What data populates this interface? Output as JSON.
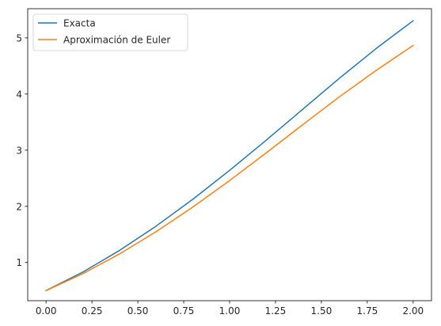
{
  "chart_data": {
    "type": "line",
    "title": "",
    "xlabel": "",
    "ylabel": "",
    "xlim": [
      -0.1,
      2.1
    ],
    "ylim": [
      0.32,
      5.52
    ],
    "grid": false,
    "legend_position": "top-left",
    "xticks": [
      "0.00",
      "0.25",
      "0.50",
      "0.75",
      "1.00",
      "1.25",
      "1.50",
      "1.75",
      "2.00"
    ],
    "xtick_values": [
      0,
      0.25,
      0.5,
      0.75,
      1.0,
      1.25,
      1.5,
      1.75,
      2.0
    ],
    "yticks": [
      "1",
      "2",
      "3",
      "4",
      "5"
    ],
    "ytick_values": [
      1,
      2,
      3,
      4,
      5
    ],
    "series": [
      {
        "name": "Exacta",
        "color": "#1f77b4",
        "x": [
          0,
          0.2,
          0.4,
          0.6,
          0.8,
          1.0,
          1.2,
          1.4,
          1.6,
          1.8,
          2.0
        ],
        "y": [
          0.5,
          0.829,
          1.214,
          1.649,
          2.127,
          2.641,
          3.18,
          3.733,
          4.286,
          4.815,
          5.305
        ]
      },
      {
        "name": "Aproximación de Euler",
        "color": "#ff7f0e",
        "x": [
          0,
          0.2,
          0.4,
          0.6,
          0.8,
          1.0,
          1.2,
          1.4,
          1.6,
          1.8,
          2.0
        ],
        "y": [
          0.5,
          0.8,
          1.152,
          1.55,
          1.988,
          2.459,
          2.954,
          3.458,
          3.955,
          4.424,
          4.866
        ]
      }
    ]
  }
}
